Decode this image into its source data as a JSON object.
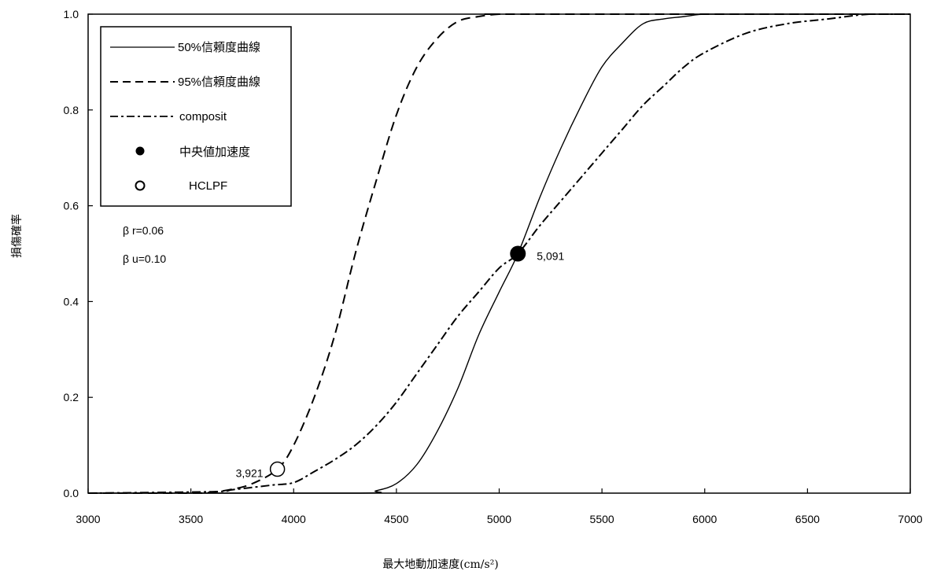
{
  "chart_data": {
    "type": "line",
    "xlabel": "最大地動加速度(cm/s²)",
    "ylabel": "損傷確率",
    "xlim": [
      3000,
      7000
    ],
    "ylim": [
      0,
      1.0
    ],
    "grid": false,
    "legend_position": "top-left",
    "x_ticks": [
      "3000",
      "3500",
      "4000",
      "4500",
      "5000",
      "5500",
      "6000",
      "6500",
      "7000"
    ],
    "y_ticks": [
      "0.0",
      "0.2",
      "0.4",
      "0.6",
      "0.8",
      "1.0"
    ],
    "legend": [
      {
        "label": "50%信頼度曲線",
        "style": "solid"
      },
      {
        "label": "95%信頼度曲線",
        "style": "dashed"
      },
      {
        "label": "composit",
        "style": "dashdot"
      },
      {
        "label": "中央値加速度",
        "style": "filled-marker"
      },
      {
        "label": "HCLPF",
        "style": "open-marker"
      }
    ],
    "parameters": [
      "β r=0.06",
      "β u=0.10"
    ],
    "series": [
      {
        "name": "50%信頼度曲線",
        "style": "solid",
        "x": [
          3000,
          4300,
          4400,
          4500,
          4600,
          4700,
          4800,
          4900,
          5000,
          5091,
          5200,
          5300,
          5400,
          5500,
          5600,
          5700,
          5800,
          5900,
          6000,
          6200,
          6500,
          7000
        ],
        "y": [
          0,
          0,
          0.005,
          0.02,
          0.06,
          0.13,
          0.22,
          0.33,
          0.42,
          0.5,
          0.62,
          0.72,
          0.81,
          0.89,
          0.94,
          0.98,
          0.99,
          0.995,
          1.0,
          1.0,
          1.0,
          1.0
        ]
      },
      {
        "name": "95%信頼度曲線",
        "style": "dashed",
        "x": [
          3000,
          3500,
          3600,
          3700,
          3800,
          3921,
          4000,
          4100,
          4200,
          4300,
          4400,
          4500,
          4600,
          4700,
          4800,
          4900,
          5000,
          5100,
          7000
        ],
        "y": [
          0,
          0,
          0.002,
          0.008,
          0.02,
          0.05,
          0.1,
          0.2,
          0.33,
          0.5,
          0.65,
          0.79,
          0.89,
          0.95,
          0.985,
          0.995,
          1.0,
          1.0,
          1.0
        ]
      },
      {
        "name": "composit",
        "style": "dashdot",
        "x": [
          3000,
          3600,
          3700,
          3800,
          3900,
          4000,
          4100,
          4200,
          4300,
          4400,
          4500,
          4600,
          4700,
          4800,
          4900,
          5000,
          5091,
          5200,
          5300,
          5400,
          5500,
          5600,
          5700,
          5800,
          5900,
          6000,
          6200,
          6400,
          6600,
          6800,
          7000
        ],
        "y": [
          0,
          0.003,
          0.007,
          0.012,
          0.017,
          0.022,
          0.045,
          0.07,
          0.1,
          0.14,
          0.19,
          0.25,
          0.31,
          0.37,
          0.42,
          0.47,
          0.5,
          0.56,
          0.61,
          0.66,
          0.71,
          0.76,
          0.81,
          0.85,
          0.89,
          0.92,
          0.96,
          0.98,
          0.99,
          1.0,
          1.0
        ]
      }
    ],
    "points": [
      {
        "name": "中央値加速度",
        "x": 5091,
        "y": 0.5,
        "label": "5,091",
        "marker": "filled"
      },
      {
        "name": "HCLPF",
        "x": 3921,
        "y": 0.05,
        "label": "3,921",
        "marker": "open"
      }
    ]
  }
}
